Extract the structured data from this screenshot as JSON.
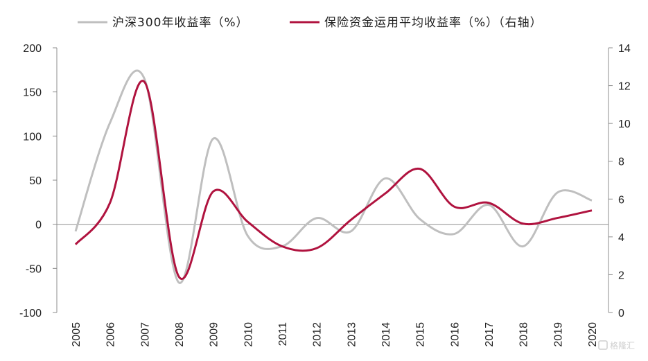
{
  "chart_data": {
    "type": "line",
    "x": [
      "2005",
      "2006",
      "2007",
      "2008",
      "2009",
      "2010",
      "2011",
      "2012",
      "2013",
      "2014",
      "2015",
      "2016",
      "2017",
      "2018",
      "2019",
      "2020"
    ],
    "series": [
      {
        "name": "沪深300年收益率（%）",
        "axis": "left",
        "color": "#bfbfbf",
        "values": [
          -8,
          115,
          165,
          -66,
          97,
          -13,
          -25,
          7,
          -8,
          52,
          6,
          -11,
          22,
          -25,
          36,
          27
        ]
      },
      {
        "name": "保险资金运用平均收益率（%）（右轴）",
        "axis": "right",
        "color": "#b0133f",
        "values": [
          3.6,
          5.8,
          12.2,
          1.9,
          6.4,
          4.8,
          3.5,
          3.4,
          4.9,
          6.3,
          7.6,
          5.6,
          5.8,
          4.7,
          5.0,
          5.4
        ]
      }
    ],
    "left_axis": {
      "ylim": [
        -100,
        200
      ],
      "ticks": [
        "200",
        "150",
        "100",
        "50",
        "0",
        "-50",
        "-100"
      ]
    },
    "right_axis": {
      "ylim": [
        0,
        14
      ],
      "ticks": [
        "14",
        "12",
        "10",
        "8",
        "6",
        "4",
        "2",
        "0"
      ]
    },
    "grid": false,
    "legend_position": "top"
  },
  "watermark": {
    "text": "格隆汇",
    "icon": "logo-icon"
  }
}
